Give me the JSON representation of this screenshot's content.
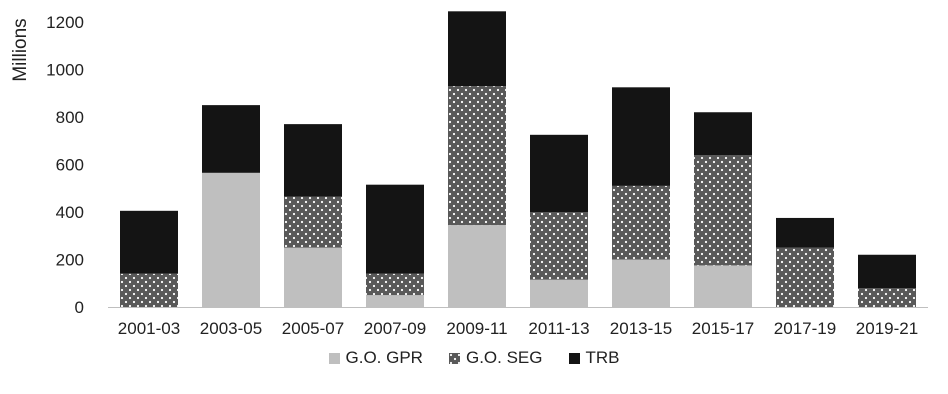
{
  "chart_data": {
    "type": "bar",
    "stacked": true,
    "title": "",
    "xlabel": "",
    "ylabel": "Millions",
    "ylim": [
      0,
      1200
    ],
    "yticks": [
      0,
      200,
      400,
      600,
      800,
      1000,
      1200
    ],
    "grid": false,
    "legend_position": "bottom",
    "categories": [
      "2001-03",
      "2003-05",
      "2005-07",
      "2007-09",
      "2009-11",
      "2011-13",
      "2013-15",
      "2015-17",
      "2017-19",
      "2019-21"
    ],
    "series": [
      {
        "name": "G.O. GPR",
        "color": "#bfbfbf",
        "pattern": "solid",
        "values": [
          0,
          565,
          250,
          50,
          345,
          115,
          200,
          175,
          0,
          0
        ]
      },
      {
        "name": "G.O. SEG",
        "color": "#595959",
        "pattern": "dotted",
        "values": [
          140,
          0,
          215,
          90,
          585,
          285,
          310,
          465,
          250,
          80
        ]
      },
      {
        "name": "TRB",
        "color": "#141414",
        "pattern": "solid",
        "values": [
          265,
          285,
          305,
          375,
          315,
          325,
          415,
          180,
          125,
          140
        ]
      }
    ]
  }
}
